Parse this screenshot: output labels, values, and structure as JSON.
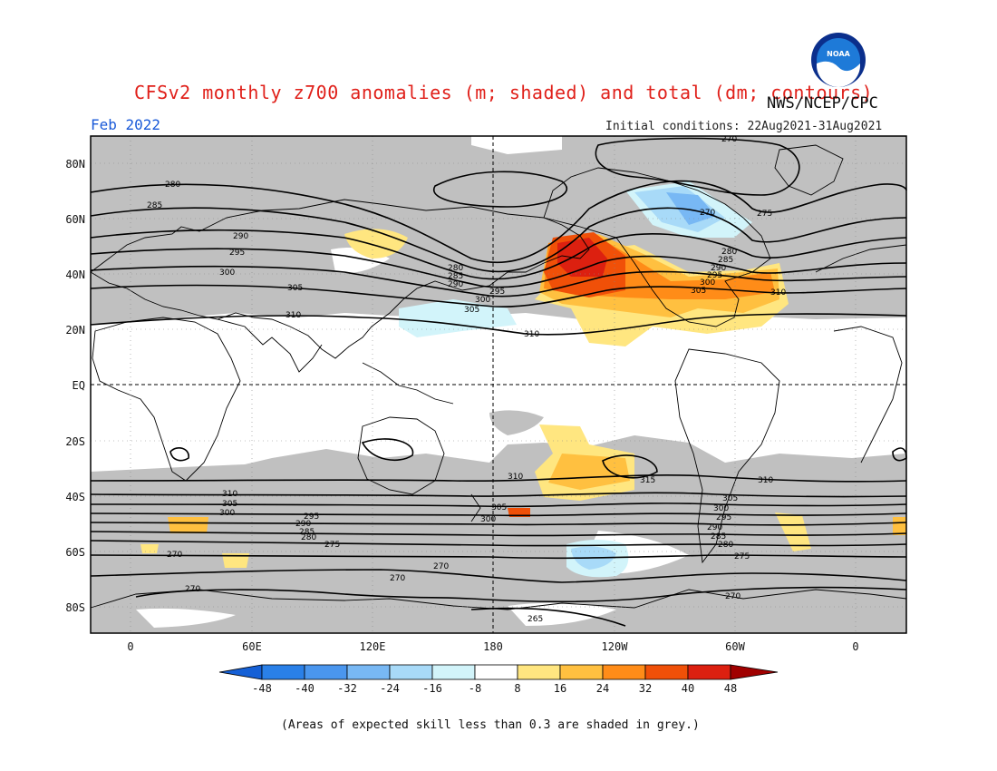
{
  "header": {
    "title": "CFSv2 monthly z700 anomalies (m; shaded) and total (dm; contours)",
    "agency": "NWS/NCEP/CPC",
    "period": "Feb 2022",
    "initial_conditions": "Initial conditions: 22Aug2021-31Aug2021"
  },
  "logo": {
    "text": "NOAA",
    "colors": {
      "ring": "#0b2f8c",
      "sky": "#1e7ad8",
      "wave": "#ffffff"
    }
  },
  "map": {
    "lat_labels": [
      "80N",
      "60N",
      "40N",
      "20N",
      "EQ",
      "20S",
      "40S",
      "60S",
      "80S"
    ],
    "lon_labels": [
      "0",
      "60E",
      "120E",
      "180",
      "120W",
      "60W",
      "0"
    ],
    "colors": {
      "skill_grey": "#c0c0c0",
      "land_line": "#000000",
      "contour": "#000000"
    },
    "contour_labels": {
      "nh": [
        "280",
        "285",
        "290",
        "295",
        "300",
        "305",
        "310",
        "280",
        "285",
        "290",
        "295",
        "300",
        "305",
        "310",
        "270",
        "275",
        "280",
        "285",
        "290",
        "295",
        "300",
        "305",
        "310",
        "270"
      ],
      "sh": [
        "310",
        "305",
        "300",
        "295",
        "290",
        "285",
        "280",
        "275",
        "270",
        "270",
        "270",
        "270",
        "265",
        "305",
        "300",
        "315",
        "310",
        "305",
        "300",
        "295",
        "290",
        "285",
        "280",
        "275",
        "270",
        "270"
      ]
    }
  },
  "colorbar": {
    "ticks": [
      "-48",
      "-40",
      "-32",
      "-24",
      "-16",
      "-8",
      "8",
      "16",
      "24",
      "32",
      "40",
      "48"
    ],
    "colors": [
      "#1560d6",
      "#2a80e8",
      "#4a96ee",
      "#78b8f4",
      "#a8daf8",
      "#d2f4fa",
      "#ffffff",
      "#ffe680",
      "#ffc040",
      "#ff8c18",
      "#f05008",
      "#dc2010",
      "#a00000"
    ]
  },
  "footnote": "(Areas of expected skill less than 0.3 are shaded in grey.)"
}
